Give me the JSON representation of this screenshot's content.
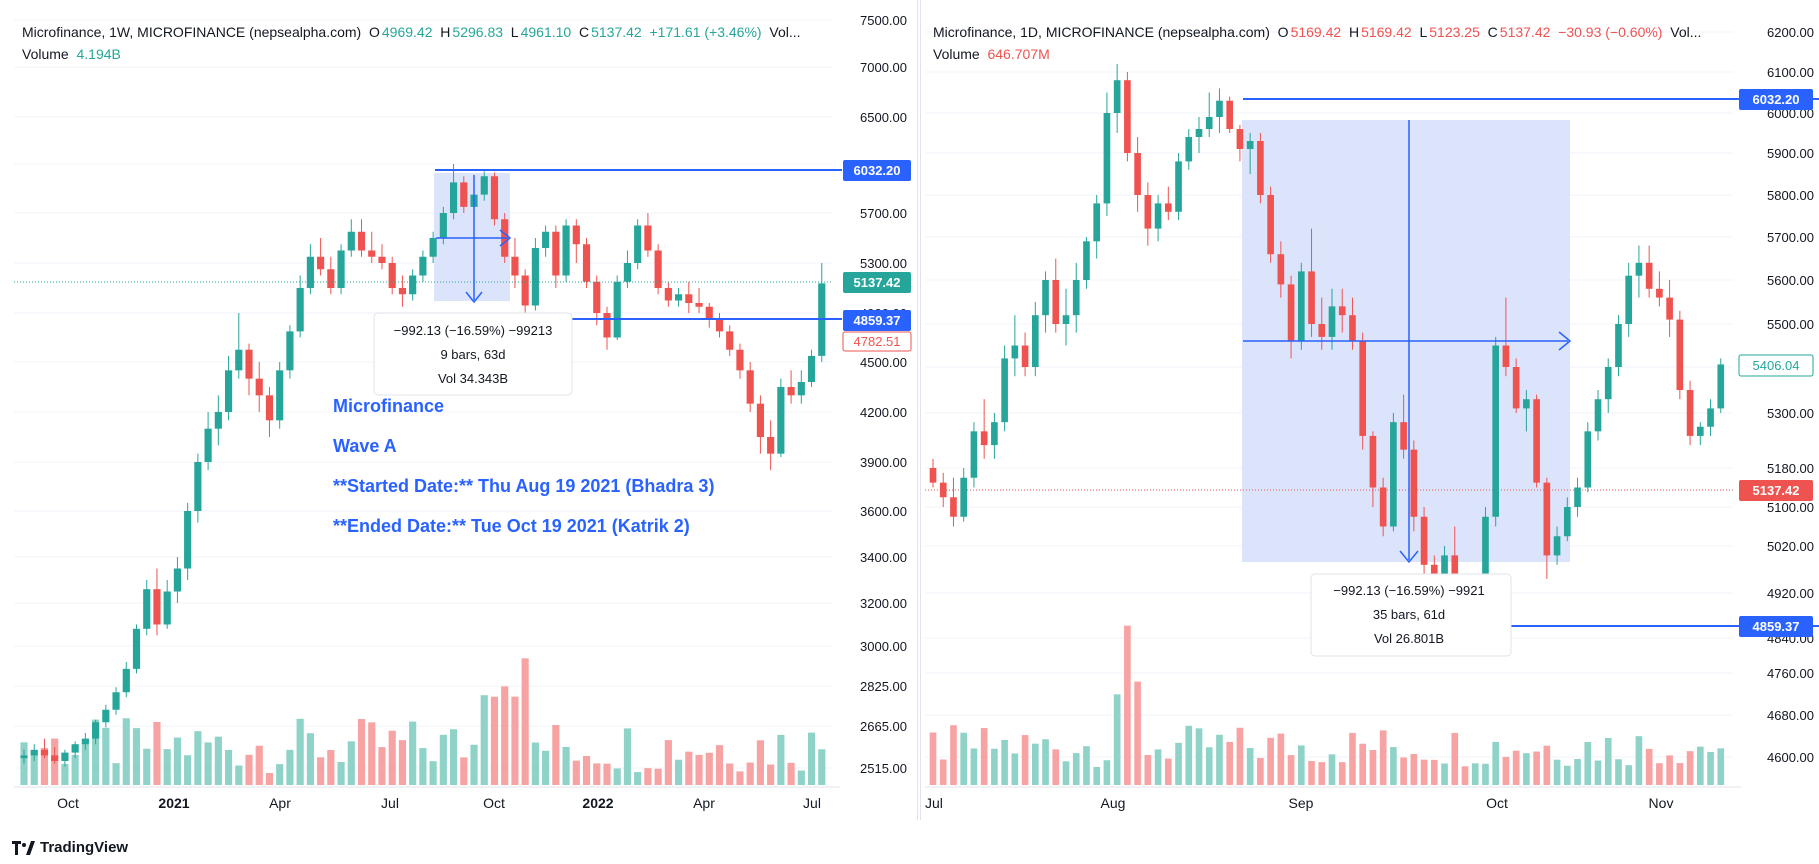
{
  "footer": {
    "brand": "TradingView",
    "brand_icon": "tradingview-logo-icon"
  },
  "colors": {
    "up": "#26a69a",
    "down": "#ef5350",
    "draw": "#2962ff",
    "vol_up": "#8fd3c8",
    "vol_down": "#f7a3a3",
    "range_fill": "#dbe4fb"
  },
  "left_chart": {
    "legend": {
      "title": "Microfinance, 1W, MICROFINANCE (nepsealpha.com)",
      "o_label": "O",
      "o": "4969.42",
      "h_label": "H",
      "h": "5296.83",
      "l_label": "L",
      "l": "4961.10",
      "c_label": "C",
      "c": "5137.42",
      "change": "+171.61 (+3.46%)",
      "vol_suffix": "Vol...",
      "volume_label": "Volume",
      "volume_value": "4.194B"
    },
    "price_labels": {
      "level_top": "6032.20",
      "level_last": "5137.42",
      "level_bottom": "4859.37",
      "level_red": "4782.51"
    },
    "measure_box": {
      "line1": "−992.13 (−16.59%) −99213",
      "line2": "9 bars, 63d",
      "line3": "Vol 34.343B"
    },
    "annotation": {
      "line1": "Microfinance",
      "line2": "Wave A",
      "line3": "**Started Date:** Thu Aug 19 2021 (Bhadra 3)",
      "line4": "**Ended Date:** Tue Oct 19 2021 (Katrik 2)"
    }
  },
  "right_chart": {
    "legend": {
      "title": "Microfinance, 1D, MICROFINANCE (nepsealpha.com)",
      "o_label": "O",
      "o": "5169.42",
      "h_label": "H",
      "h": "5169.42",
      "l_label": "L",
      "l": "5123.25",
      "c_label": "C",
      "c": "5137.42",
      "change": "−30.93 (−0.60%)",
      "vol_suffix": "Vol...",
      "volume_label": "Volume",
      "volume_value": "646.707M"
    },
    "price_labels": {
      "level_top": "6032.20",
      "level_last": "5137.42",
      "level_bottom": "4859.37",
      "level_hover": "5406.04"
    },
    "measure_box": {
      "line1": "−992.13 (−16.59%) −9921",
      "line2": "35 bars, 61d",
      "line3": "Vol 26.801B"
    }
  },
  "chart_data": [
    {
      "type": "candlestick",
      "title": "Microfinance, 1W, MICROFINANCE (nepsealpha.com)",
      "y_ticks": [
        "7500.00",
        "7000.00",
        "6500.00",
        "6100.00",
        "5700.00",
        "5300.00",
        "4900.00",
        "4500.00",
        "4200.00",
        "3900.00",
        "3600.00",
        "3400.00",
        "3200.00",
        "3000.00",
        "2825.00",
        "2665.00",
        "2515.00"
      ],
      "x_ticks": [
        "Oct",
        "2021",
        "Apr",
        "Jul",
        "Oct",
        "2022",
        "Apr",
        "Jul"
      ],
      "candles": [
        [
          2550,
          2580,
          2530,
          2560
        ],
        [
          2560,
          2600,
          2540,
          2580
        ],
        [
          2580,
          2620,
          2550,
          2560
        ],
        [
          2560,
          2590,
          2530,
          2540
        ],
        [
          2540,
          2580,
          2520,
          2570
        ],
        [
          2570,
          2610,
          2550,
          2600
        ],
        [
          2600,
          2640,
          2580,
          2620
        ],
        [
          2620,
          2690,
          2600,
          2680
        ],
        [
          2680,
          2750,
          2660,
          2730
        ],
        [
          2730,
          2820,
          2710,
          2800
        ],
        [
          2800,
          2930,
          2780,
          2900
        ],
        [
          2900,
          3100,
          2880,
          3080
        ],
        [
          3080,
          3300,
          3050,
          3260
        ],
        [
          3260,
          3350,
          3050,
          3100
        ],
        [
          3100,
          3300,
          3080,
          3250
        ],
        [
          3250,
          3400,
          3200,
          3350
        ],
        [
          3350,
          3650,
          3300,
          3600
        ],
        [
          3600,
          3950,
          3550,
          3900
        ],
        [
          3900,
          4200,
          3850,
          4100
        ],
        [
          4100,
          4300,
          4000,
          4200
        ],
        [
          4200,
          4550,
          4150,
          4450
        ],
        [
          4450,
          4900,
          4400,
          4600
        ],
        [
          4600,
          4650,
          4300,
          4400
        ],
        [
          4400,
          4500,
          4200,
          4300
        ],
        [
          4300,
          4350,
          4050,
          4150
        ],
        [
          4150,
          4500,
          4100,
          4450
        ],
        [
          4450,
          4800,
          4400,
          4750
        ],
        [
          4750,
          5200,
          4700,
          5100
        ],
        [
          5100,
          5450,
          5050,
          5350
        ],
        [
          5350,
          5500,
          5200,
          5250
        ],
        [
          5250,
          5350,
          5050,
          5100
        ],
        [
          5100,
          5450,
          5050,
          5400
        ],
        [
          5400,
          5650,
          5350,
          5550
        ],
        [
          5550,
          5650,
          5350,
          5400
        ],
        [
          5400,
          5550,
          5300,
          5350
        ],
        [
          5350,
          5450,
          5250,
          5300
        ],
        [
          5300,
          5350,
          5050,
          5100
        ],
        [
          5100,
          5200,
          4950,
          5050
        ],
        [
          5050,
          5250,
          5000,
          5200
        ],
        [
          5200,
          5400,
          5150,
          5350
        ],
        [
          5350,
          5550,
          5300,
          5500
        ],
        [
          5500,
          5750,
          5450,
          5700
        ],
        [
          5700,
          6100,
          5650,
          5950
        ],
        [
          5950,
          6000,
          5700,
          5750
        ],
        [
          5750,
          5900,
          5650,
          5850
        ],
        [
          5850,
          6040,
          5800,
          6000
        ],
        [
          6000,
          6030,
          5600,
          5650
        ],
        [
          5650,
          5700,
          5300,
          5350
        ],
        [
          5350,
          5500,
          5100,
          5200
        ],
        [
          5200,
          5250,
          4900,
          4960
        ],
        [
          4960,
          5500,
          4920,
          5420
        ],
        [
          5420,
          5600,
          5350,
          5550
        ],
        [
          5550,
          5600,
          5100,
          5200
        ],
        [
          5200,
          5650,
          5150,
          5600
        ],
        [
          5600,
          5650,
          5300,
          5450
        ],
        [
          5450,
          5500,
          5100,
          5150
        ],
        [
          5150,
          5200,
          4800,
          4900
        ],
        [
          4900,
          4950,
          4600,
          4700
        ],
        [
          4700,
          5200,
          4680,
          5150
        ],
        [
          5150,
          5400,
          5100,
          5300
        ],
        [
          5300,
          5650,
          5250,
          5600
        ],
        [
          5600,
          5700,
          5350,
          5400
        ],
        [
          5400,
          5450,
          5050,
          5100
        ],
        [
          5100,
          5150,
          4950,
          5000
        ],
        [
          5000,
          5100,
          4950,
          5050
        ],
        [
          5050,
          5150,
          4900,
          4980
        ],
        [
          4980,
          5100,
          4900,
          4950
        ],
        [
          4950,
          4980,
          4780,
          4850
        ],
        [
          4850,
          4900,
          4700,
          4750
        ],
        [
          4750,
          4800,
          4550,
          4600
        ],
        [
          4600,
          4650,
          4400,
          4450
        ],
        [
          4450,
          4500,
          4200,
          4250
        ],
        [
          4250,
          4300,
          3950,
          4050
        ],
        [
          4050,
          4150,
          3850,
          3950
        ],
        [
          3950,
          4400,
          3930,
          4350
        ],
        [
          4350,
          4450,
          4250,
          4300
        ],
        [
          4300,
          4450,
          4250,
          4380
        ],
        [
          4380,
          4600,
          4350,
          4550
        ],
        [
          4550,
          5300,
          4500,
          5137
        ]
      ]
    },
    {
      "type": "candlestick",
      "title": "Microfinance, 1D, MICROFINANCE (nepsealpha.com)",
      "y_ticks": [
        "6200.00",
        "6100.00",
        "6000.00",
        "5900.00",
        "5800.00",
        "5700.00",
        "5600.00",
        "5500.00",
        "5400.00",
        "5300.00",
        "5180.00",
        "5100.00",
        "5020.00",
        "4920.00",
        "4840.00",
        "4760.00",
        "4680.00",
        "4600.00"
      ],
      "x_ticks": [
        "Jul",
        "Aug",
        "Sep",
        "Oct",
        "Nov"
      ],
      "candles": [
        [
          5180,
          5200,
          5140,
          5150
        ],
        [
          5150,
          5170,
          5100,
          5120
        ],
        [
          5120,
          5160,
          5060,
          5080
        ],
        [
          5080,
          5180,
          5070,
          5160
        ],
        [
          5160,
          5280,
          5140,
          5260
        ],
        [
          5260,
          5330,
          5200,
          5230
        ],
        [
          5230,
          5300,
          5200,
          5280
        ],
        [
          5280,
          5450,
          5260,
          5420
        ],
        [
          5420,
          5520,
          5380,
          5450
        ],
        [
          5450,
          5480,
          5380,
          5400
        ],
        [
          5400,
          5550,
          5380,
          5520
        ],
        [
          5520,
          5620,
          5480,
          5600
        ],
        [
          5600,
          5650,
          5480,
          5500
        ],
        [
          5500,
          5580,
          5450,
          5520
        ],
        [
          5520,
          5640,
          5480,
          5600
        ],
        [
          5600,
          5700,
          5580,
          5690
        ],
        [
          5690,
          5800,
          5650,
          5780
        ],
        [
          5780,
          6050,
          5750,
          6000
        ],
        [
          6000,
          6120,
          5950,
          6080
        ],
        [
          6080,
          6100,
          5880,
          5900
        ],
        [
          5900,
          5940,
          5760,
          5800
        ],
        [
          5800,
          5830,
          5680,
          5720
        ],
        [
          5720,
          5800,
          5690,
          5780
        ],
        [
          5780,
          5820,
          5740,
          5760
        ],
        [
          5760,
          5900,
          5740,
          5880
        ],
        [
          5880,
          5960,
          5860,
          5940
        ],
        [
          5940,
          5990,
          5900,
          5960
        ],
        [
          5960,
          6050,
          5940,
          5990
        ],
        [
          5990,
          6060,
          5950,
          6030
        ],
        [
          6030,
          6040,
          5950,
          5960
        ],
        [
          5960,
          5970,
          5880,
          5910
        ],
        [
          5910,
          5950,
          5850,
          5930
        ],
        [
          5930,
          5950,
          5780,
          5800
        ],
        [
          5800,
          5820,
          5640,
          5660
        ],
        [
          5660,
          5690,
          5560,
          5590
        ],
        [
          5590,
          5610,
          5420,
          5460
        ],
        [
          5460,
          5640,
          5440,
          5620
        ],
        [
          5620,
          5720,
          5470,
          5500
        ],
        [
          5500,
          5560,
          5440,
          5470
        ],
        [
          5470,
          5580,
          5440,
          5540
        ],
        [
          5540,
          5580,
          5480,
          5520
        ],
        [
          5520,
          5560,
          5440,
          5460
        ],
        [
          5460,
          5480,
          5220,
          5250
        ],
        [
          5250,
          5260,
          5100,
          5140
        ],
        [
          5140,
          5160,
          5040,
          5060
        ],
        [
          5060,
          5300,
          5050,
          5280
        ],
        [
          5280,
          5340,
          5200,
          5220
        ],
        [
          5220,
          5240,
          5050,
          5080
        ],
        [
          5080,
          5100,
          4960,
          4980
        ],
        [
          4980,
          5000,
          4880,
          4900
        ],
        [
          4900,
          5020,
          4880,
          5000
        ],
        [
          5000,
          5060,
          4930,
          4940
        ],
        [
          4940,
          4960,
          4860,
          4880
        ],
        [
          4880,
          4960,
          4870,
          4950
        ],
        [
          4950,
          5100,
          4940,
          5080
        ],
        [
          5080,
          5470,
          5060,
          5450
        ],
        [
          5450,
          5560,
          5380,
          5400
        ],
        [
          5400,
          5420,
          5300,
          5310
        ],
        [
          5310,
          5350,
          5260,
          5330
        ],
        [
          5330,
          5340,
          5140,
          5150
        ],
        [
          5150,
          5160,
          4950,
          5000
        ],
        [
          5000,
          5060,
          4980,
          5040
        ],
        [
          5040,
          5120,
          5030,
          5100
        ],
        [
          5100,
          5160,
          5080,
          5140
        ],
        [
          5140,
          5280,
          5130,
          5260
        ],
        [
          5260,
          5350,
          5240,
          5330
        ],
        [
          5330,
          5420,
          5300,
          5400
        ],
        [
          5400,
          5520,
          5380,
          5500
        ],
        [
          5500,
          5640,
          5470,
          5610
        ],
        [
          5610,
          5680,
          5560,
          5640
        ],
        [
          5640,
          5680,
          5560,
          5580
        ],
        [
          5580,
          5620,
          5540,
          5560
        ],
        [
          5560,
          5600,
          5470,
          5510
        ],
        [
          5510,
          5530,
          5330,
          5350
        ],
        [
          5350,
          5370,
          5230,
          5250
        ],
        [
          5250,
          5280,
          5230,
          5270
        ],
        [
          5270,
          5330,
          5250,
          5310
        ],
        [
          5310,
          5420,
          5300,
          5406
        ]
      ]
    }
  ]
}
